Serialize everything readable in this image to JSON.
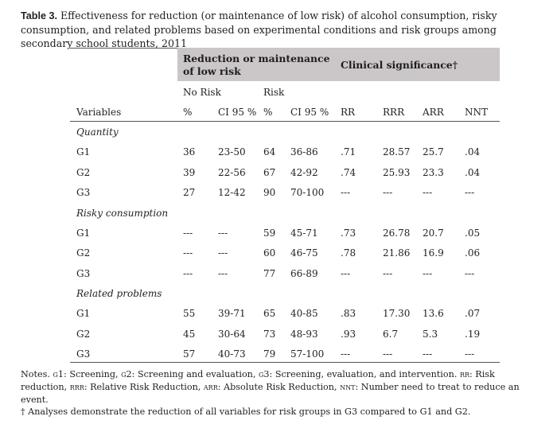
{
  "caption": {
    "label": "Table 3.",
    "text": "Effectiveness for reduction (or maintenance of low risk) of alcohol consumption, risky consumption, and related problems based on experimental conditions and risk groups among secondary school students, 2011"
  },
  "table": {
    "header": {
      "reduction": "Reduction or maintenance of low risk",
      "clinical": "Clinical significance†",
      "no_risk": "No Risk",
      "risk": "Risk"
    },
    "columns": [
      "Variables",
      "%",
      "CI 95 %",
      "%",
      "CI 95 %",
      "RR",
      "RRR",
      "ARR",
      "NNT"
    ],
    "sections": [
      {
        "title": "Quantity",
        "rows": [
          [
            "G1",
            "36",
            "23-50",
            "64",
            "36-86",
            ".71",
            "28.57",
            "25.7",
            ".04"
          ],
          [
            "G2",
            "39",
            "22-56",
            "67",
            "42-92",
            ".74",
            "25.93",
            "23.3",
            ".04"
          ],
          [
            "G3",
            "27",
            "12-42",
            "90",
            "70-100",
            "---",
            "---",
            "---",
            "---"
          ]
        ]
      },
      {
        "title": "Risky consumption",
        "rows": [
          [
            "G1",
            "---",
            "---",
            "59",
            "45-71",
            ".73",
            "26.78",
            "20.7",
            ".05"
          ],
          [
            "G2",
            "---",
            "---",
            "60",
            "46-75",
            ".78",
            "21.86",
            "16.9",
            ".06"
          ],
          [
            "G3",
            "---",
            "---",
            "77",
            "66-89",
            "---",
            "---",
            "---",
            "---"
          ]
        ]
      },
      {
        "title": "Related problems",
        "rows": [
          [
            "G1",
            "55",
            "39-71",
            "65",
            "40-85",
            ".83",
            "17.30",
            "13.6",
            ".07"
          ],
          [
            "G2",
            "45",
            "30-64",
            "73",
            "48-93",
            ".93",
            "6.7",
            "5.3",
            ".19"
          ],
          [
            "G3",
            "57",
            "40-73",
            "79",
            "57-100",
            "---",
            "---",
            "---",
            "---"
          ]
        ]
      }
    ]
  },
  "notes": {
    "prefix": "Notes.",
    "items": [
      {
        "abbr": "G1",
        "text": ": Screening, "
      },
      {
        "abbr": "G2",
        "text": ": Screening and evaluation, "
      },
      {
        "abbr": "G3",
        "text": ": Screening, evaluation, and intervention. "
      },
      {
        "abbr": "RR",
        "text": ": Risk reduction, "
      },
      {
        "abbr": "RRR",
        "text": ": Relative Risk Reduction, "
      },
      {
        "abbr": "ARR",
        "text": ": Absolute Risk Reduction, "
      },
      {
        "abbr": "NNT",
        "text": ": Number need to treat to reduce an event."
      }
    ],
    "dagger": "† Analyses demonstrate the reduction of all variables for risk groups in G3 compared to G1 and G2."
  }
}
